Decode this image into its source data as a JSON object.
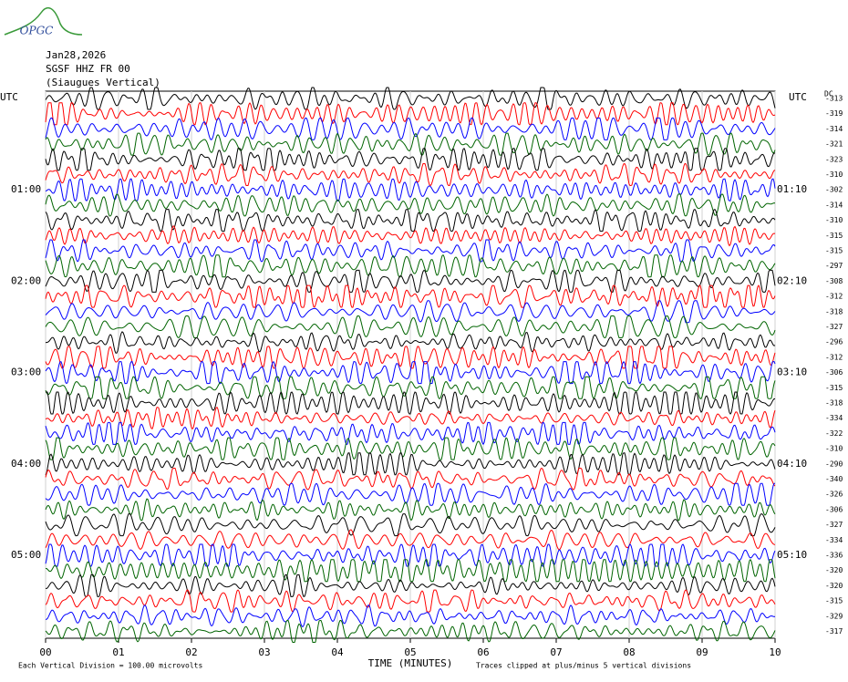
{
  "chart_data": {
    "type": "helicorder",
    "logo": "OPGC",
    "title_lines": [
      "Jan28,2026",
      "SGSF HHZ FR 00",
      "(Siaugues Vertical)"
    ],
    "left_axis_label": "UTC",
    "right_axis_label": "UTC",
    "dc_label": "DC",
    "left_time_labels": [
      "01:00",
      "02:00",
      "03:00",
      "04:00",
      "05:00"
    ],
    "right_time_labels": [
      "01:10",
      "02:10",
      "03:10",
      "04:10",
      "05:10"
    ],
    "dc_offsets": [
      -313,
      -319,
      -314,
      -321,
      -323,
      -310,
      -302,
      -314,
      -310,
      -315,
      -315,
      -297,
      -308,
      -312,
      -318,
      -327,
      -296,
      -312,
      -306,
      -315,
      -318,
      -334,
      -322,
      -310,
      -290,
      -340,
      -326,
      -306,
      -327,
      -334,
      -336,
      -320,
      -320,
      -315,
      -329,
      -317
    ],
    "trace_colors": [
      "#000000",
      "#ff0000",
      "#0000ff",
      "#006400"
    ],
    "xlabel": "TIME (MINUTES)",
    "xlim": [
      0,
      10
    ],
    "xticks": [
      {
        "value": 0,
        "label": "00"
      },
      {
        "value": 1,
        "label": "01"
      },
      {
        "value": 2,
        "label": "02"
      },
      {
        "value": 3,
        "label": "03"
      },
      {
        "value": 4,
        "label": "04"
      },
      {
        "value": 5,
        "label": "05"
      },
      {
        "value": 6,
        "label": "06"
      },
      {
        "value": 7,
        "label": "07"
      },
      {
        "value": 8,
        "label": "08"
      },
      {
        "value": 9,
        "label": "09"
      },
      {
        "value": 10,
        "label": "10"
      }
    ],
    "grid": true,
    "footnote_left": "Each Vertical Division =  100.00 microvolts",
    "footnote_right": "Traces clipped at plus/minus 5 vertical divisions"
  }
}
